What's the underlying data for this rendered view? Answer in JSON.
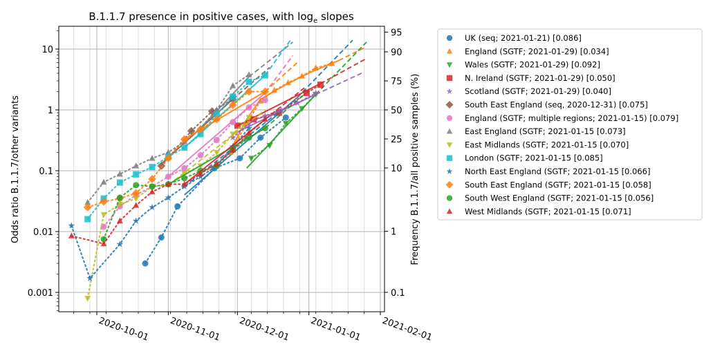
{
  "chart_data": {
    "type": "scatter",
    "title": "B.1.1.7 presence in positive cases, with log",
    "title_subscript": "e",
    "title_suffix": " slopes",
    "ylabel": "Odds ratio B.1.1.7/other variants",
    "ylabel_right": "Frequency B.1.1.7/all positive samples (%)",
    "yscale": "log",
    "ylim": [
      0.0005,
      25
    ],
    "xlim": [
      "2020-09-07",
      "2021-02-01"
    ],
    "x_ticks": [
      "2020-10-01",
      "2020-11-01",
      "2020-12-01",
      "2021-01-01",
      "2021-02-01"
    ],
    "y_ticks": [
      {
        "value": 10,
        "label": "10"
      },
      {
        "value": 1,
        "label": "1"
      },
      {
        "value": 0.1,
        "label": "0.1"
      },
      {
        "value": 0.01,
        "label": "0.01"
      },
      {
        "value": 0.001,
        "label": "0.001"
      }
    ],
    "y_right_ticks": [
      {
        "value": 95,
        "label": "95"
      },
      {
        "value": 90,
        "label": "90"
      },
      {
        "value": 75,
        "label": "75"
      },
      {
        "value": 50,
        "label": "50"
      },
      {
        "value": 25,
        "label": "25"
      },
      {
        "value": 10,
        "label": "10"
      },
      {
        "value": 1,
        "label": "1"
      },
      {
        "value": 0.1,
        "label": "0.1"
      }
    ],
    "grid": true,
    "legend_position": "outside-right",
    "series": [
      {
        "name": "UK (seq; 2021-01-21) [0.086]",
        "color": "#1f77b4",
        "marker": "o",
        "points": [
          [
            51,
            0.003
          ],
          [
            58,
            0.008
          ],
          [
            65,
            0.026
          ],
          [
            81,
            0.11
          ],
          [
            92,
            0.16
          ],
          [
            101,
            0.35
          ],
          [
            112,
            0.75
          ]
        ],
        "fit": [
          [
            68,
            0.04
          ],
          [
            117,
            1.6
          ],
          [
            141,
            14
          ]
        ]
      },
      {
        "name": "England (SGTF; 2021-01-29) [0.034]",
        "color": "#ff7f0e",
        "marker": "^",
        "points": [
          [
            88,
            0.2
          ],
          [
            95,
            0.6
          ],
          [
            101,
            1.4
          ],
          [
            107,
            2.1
          ],
          [
            113,
            2.8
          ],
          [
            119,
            3.6
          ],
          [
            125,
            4.9
          ],
          [
            132,
            5.8
          ]
        ],
        "fit": [
          [
            88,
            0.22
          ],
          [
            95,
            0.7
          ],
          [
            101,
            1.5
          ],
          [
            112,
            2.6
          ],
          [
            123,
            4.2
          ],
          [
            135,
            6.5
          ],
          [
            146,
            10.5
          ]
        ]
      },
      {
        "name": "Wales (SGTF; 2021-01-29) [0.092]",
        "color": "#2ca02c",
        "marker": "v",
        "points": [
          [
            97,
            0.16
          ],
          [
            105,
            0.26
          ],
          [
            112,
            0.6
          ],
          [
            119,
            1.05
          ],
          [
            125,
            1.8
          ]
        ],
        "fit": [
          [
            95,
            0.11
          ],
          [
            125,
            1.8
          ],
          [
            147,
            13
          ]
        ]
      },
      {
        "name": "N. Ireland (SGTF; 2021-01-29) [0.050]",
        "color": "#d62728",
        "marker": "s",
        "points": [
          [
            91,
            0.55
          ],
          [
            98,
            0.7
          ],
          [
            109,
            0.9
          ],
          [
            121,
            1.9
          ],
          [
            127,
            2.6
          ]
        ],
        "fit": [
          [
            91,
            0.55
          ],
          [
            127,
            2.7
          ],
          [
            147,
            7
          ]
        ]
      },
      {
        "name": "Scotland (SGTF; 2021-01-29) [0.040]",
        "color": "#9467bd",
        "marker": "*",
        "points": [
          [
            89,
            0.35
          ],
          [
            96,
            0.6
          ],
          [
            103,
            0.8
          ],
          [
            110,
            1.0
          ],
          [
            117,
            1.3
          ],
          [
            125,
            1.9
          ]
        ],
        "fit": [
          [
            89,
            0.4
          ],
          [
            125,
            1.8
          ],
          [
            146,
            4.2
          ]
        ]
      },
      {
        "name": "South East England (seq, 2020-12-31) [0.075]",
        "color": "#8c564b",
        "marker": "D",
        "points": [
          [
            58,
            0.12
          ],
          [
            71,
            0.45
          ],
          [
            80,
            0.95
          ],
          [
            89,
            1.5
          ]
        ],
        "fit": [
          [
            58,
            0.13
          ],
          [
            89,
            1.5
          ],
          [
            105,
            5
          ]
        ]
      },
      {
        "name": "England (SGTF; multiple regions; 2021-01-15) [0.079]",
        "color": "#e377c2",
        "marker": "o",
        "points": [
          [
            33,
            0.012
          ],
          [
            40,
            0.026
          ],
          [
            47,
            0.04
          ],
          [
            54,
            0.055
          ],
          [
            61,
            0.08
          ],
          [
            68,
            0.11
          ],
          [
            75,
            0.18
          ],
          [
            82,
            0.32
          ],
          [
            89,
            0.63
          ],
          [
            96,
            1.1
          ],
          [
            103,
            1.45
          ]
        ],
        "fit": [
          [
            61,
            0.08
          ],
          [
            103,
            1.9
          ],
          [
            115,
            7.8
          ]
        ]
      },
      {
        "name": "East England (SGTF; 2021-01-15 [0.073]",
        "color": "#7f7f7f",
        "marker": "^",
        "points": [
          [
            26,
            0.03
          ],
          [
            33,
            0.065
          ],
          [
            40,
            0.088
          ],
          [
            47,
            0.12
          ],
          [
            54,
            0.16
          ],
          [
            61,
            0.2
          ],
          [
            68,
            0.3
          ],
          [
            75,
            0.5
          ],
          [
            82,
            1.0
          ],
          [
            89,
            2.5
          ],
          [
            96,
            3.8
          ]
        ],
        "fit": [
          [
            75,
            0.5
          ],
          [
            96,
            3.5
          ],
          [
            115,
            13
          ]
        ]
      },
      {
        "name": "East Midlands (SGTF; 2021-01-15 [0.070]",
        "color": "#bcbd22",
        "marker": "v",
        "points": [
          [
            26,
            0.0008
          ],
          [
            33,
            0.019
          ],
          [
            40,
            0.028
          ],
          [
            47,
            0.035
          ],
          [
            54,
            0.055
          ],
          [
            61,
            0.058
          ],
          [
            68,
            0.09
          ],
          [
            75,
            0.12
          ],
          [
            82,
            0.2
          ],
          [
            89,
            0.4
          ],
          [
            96,
            0.75
          ]
        ],
        "fit": [
          [
            61,
            0.058
          ],
          [
            103,
            1.0
          ]
        ]
      },
      {
        "name": "London (SGTF; 2021-01-15 [0.085]",
        "color": "#17becf",
        "marker": "s",
        "points": [
          [
            26,
            0.016
          ],
          [
            33,
            0.035
          ],
          [
            40,
            0.064
          ],
          [
            47,
            0.087
          ],
          [
            54,
            0.115
          ],
          [
            61,
            0.17
          ],
          [
            68,
            0.24
          ],
          [
            75,
            0.4
          ],
          [
            82,
            0.85
          ],
          [
            89,
            1.65
          ],
          [
            96,
            2.9
          ],
          [
            103,
            3.7
          ]
        ],
        "fit": [
          [
            68,
            0.24
          ],
          [
            103,
            3.7
          ],
          [
            114,
            14
          ]
        ]
      },
      {
        "name": "North East England (SGTF; 2021-01-15 [0.066]",
        "color": "#1f77b4",
        "marker": "*",
        "points": [
          [
            19,
            0.0125
          ],
          [
            27,
            0.0017
          ],
          [
            40,
            0.0062
          ],
          [
            47,
            0.015
          ],
          [
            54,
            0.025
          ],
          [
            61,
            0.036
          ],
          [
            68,
            0.055
          ],
          [
            75,
            0.08
          ],
          [
            82,
            0.12
          ],
          [
            89,
            0.25
          ],
          [
            96,
            0.5
          ]
        ],
        "fit": [
          [
            68,
            0.055
          ],
          [
            110,
            1.0
          ]
        ]
      },
      {
        "name": "South East England (SGTF; 2021-01-15 [0.058]",
        "color": "#ff7f0e",
        "marker": "D",
        "points": [
          [
            26,
            0.025
          ],
          [
            33,
            0.031
          ],
          [
            40,
            0.035
          ],
          [
            47,
            0.043
          ],
          [
            54,
            0.073
          ],
          [
            61,
            0.16
          ],
          [
            68,
            0.33
          ],
          [
            75,
            0.48
          ],
          [
            82,
            0.7
          ],
          [
            89,
            1.2
          ],
          [
            96,
            2.0
          ],
          [
            103,
            2.0
          ]
        ],
        "fit": [
          [
            68,
            0.33
          ],
          [
            103,
            2.0
          ],
          [
            117,
            6
          ]
        ]
      },
      {
        "name": "South West England (SGTF; 2021-01-15 [0.056]",
        "color": "#2ca02c",
        "marker": "o",
        "points": [
          [
            33,
            0.0075
          ],
          [
            40,
            0.036
          ],
          [
            47,
            0.058
          ],
          [
            54,
            0.055
          ],
          [
            61,
            0.06
          ],
          [
            68,
            0.075
          ],
          [
            75,
            0.1
          ],
          [
            82,
            0.12
          ],
          [
            89,
            0.22
          ],
          [
            96,
            0.35
          ],
          [
            103,
            0.5
          ]
        ],
        "fit": [
          [
            61,
            0.06
          ],
          [
            103,
            0.5
          ],
          [
            120,
            1.8
          ]
        ]
      },
      {
        "name": "West Midlands (SGTF; 2021-01-15 [0.071]",
        "color": "#d62728",
        "marker": "^",
        "points": [
          [
            19,
            0.0085
          ],
          [
            33,
            0.0063
          ],
          [
            40,
            0.015
          ],
          [
            47,
            0.027
          ],
          [
            54,
            0.045
          ],
          [
            61,
            0.06
          ],
          [
            68,
            0.06
          ],
          [
            75,
            0.09
          ],
          [
            82,
            0.13
          ],
          [
            89,
            0.22
          ],
          [
            96,
            0.42
          ],
          [
            103,
            0.7
          ]
        ],
        "fit": [
          [
            68,
            0.06
          ],
          [
            103,
            0.7
          ],
          [
            120,
            2.3
          ]
        ]
      }
    ]
  }
}
